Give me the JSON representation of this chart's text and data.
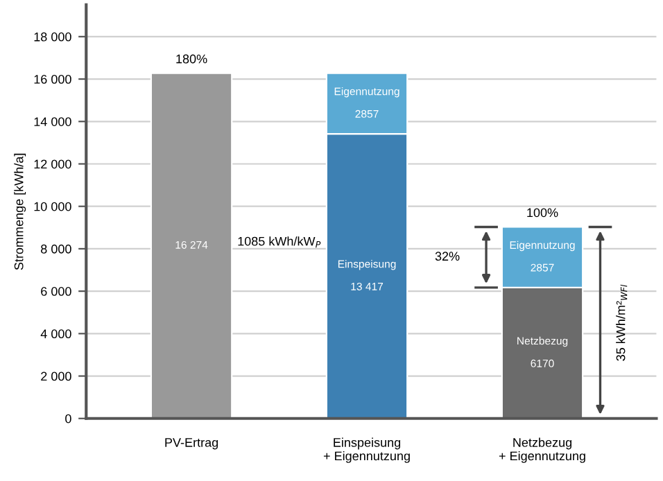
{
  "chart_data": {
    "type": "bar",
    "stacked": true,
    "ylabel": "Strommenge [kWh/a]",
    "categories": [
      "PV-Ertrag",
      "Einspeisung\n+ Eigennutzung",
      "Netzbezug\n+ Eigennutzung"
    ],
    "series": [
      {
        "colors": [
          "#999999",
          "#3d80b3",
          "#6b6b6b"
        ],
        "values": [
          16274,
          13417,
          6170
        ],
        "value_labels": [
          "16 274",
          "Einspeisung\n13 417",
          "Netzbezug\n6170"
        ]
      },
      {
        "color": "#5aaad4",
        "values": [
          null,
          2857,
          2857
        ],
        "value_labels": [
          null,
          "Eigennutzung\n2857",
          "Eigennutzung\n2857"
        ]
      }
    ],
    "annotations": [
      {
        "text": "180%",
        "x": "PV-Ertrag",
        "y": 16274
      },
      "1085 kWh/kW$_{P}$",
      {
        "text": "100%",
        "x": "Netzbezug\n+ Eigennutzung",
        "y": 9027
      },
      "32%",
      "35 kWh/m²$_{WFl}$"
    ],
    "ylim": [
      0,
      19500
    ],
    "yticks": [
      {
        "value": 0,
        "label": "0"
      },
      {
        "value": 2000,
        "label": "2 000"
      },
      {
        "value": 4000,
        "label": "4 000"
      },
      {
        "value": 6000,
        "label": "6 000"
      },
      {
        "value": 8000,
        "label": "8 000"
      },
      {
        "value": 10000,
        "label": "10 000"
      },
      {
        "value": 12000,
        "label": "12 000"
      },
      {
        "value": 14000,
        "label": "14 000"
      },
      {
        "value": 16000,
        "label": "16 000"
      },
      {
        "value": 18000,
        "label": "18 000"
      }
    ],
    "grid": "y"
  }
}
